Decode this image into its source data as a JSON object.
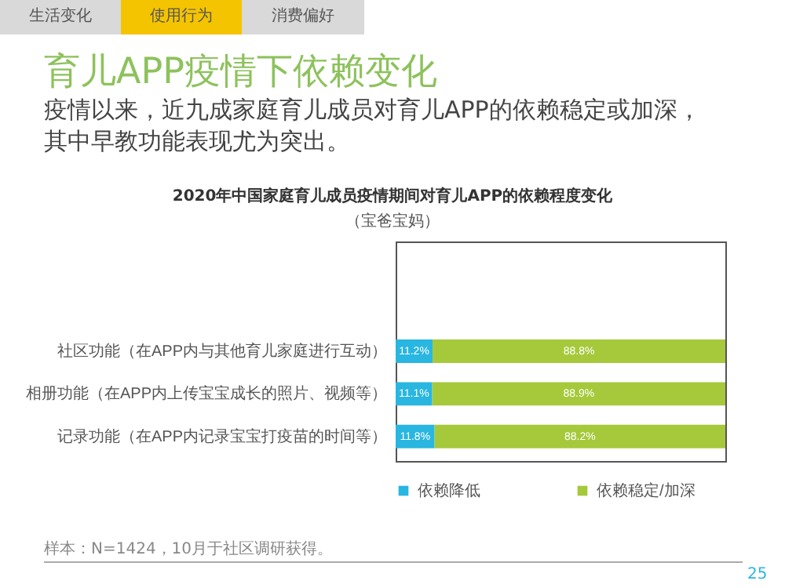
{
  "chart_data": {
    "type": "bar",
    "orientation": "horizontal",
    "stacked": true,
    "title": "育儿APP疫情下依赖变化",
    "subtitle": "疫情以来，近九成家庭育儿成员对育儿APP的依赖稳定或加深，其中早教功能表现尤为突出。",
    "annotations": [
      "生活变化",
      "使用行为",
      "消费偏好",
      "2020年中国家庭育儿成员疫情期间对育儿APP的依赖程度变化",
      "（宝爸宝妈）",
      "样本：N=1424，10月于社区调研获得。",
      "25"
    ],
    "categories": [
      null,
      null,
      "社区功能（在APP内与其他育儿家庭进行互动）",
      "相册功能（在APP内上传宝宝成长的照片、视频等）",
      "记录功能（在APP内记录宝宝打疫苗的时间等）"
    ],
    "series": [
      {
        "name": "依赖降低",
        "color": "#29b6e0",
        "values": [
          null,
          null,
          11.2,
          11.1,
          11.8
        ],
        "value_labels": [
          null,
          null,
          "11.2%",
          "11.1%",
          "11.8%"
        ]
      },
      {
        "name": "依赖稳定/加深",
        "color": "#a5c93a",
        "values": [
          null,
          null,
          88.8,
          88.9,
          88.2
        ],
        "value_labels": [
          null,
          null,
          "88.8%",
          "88.9%",
          "88.2%"
        ]
      }
    ],
    "legend": "bottom"
  }
}
